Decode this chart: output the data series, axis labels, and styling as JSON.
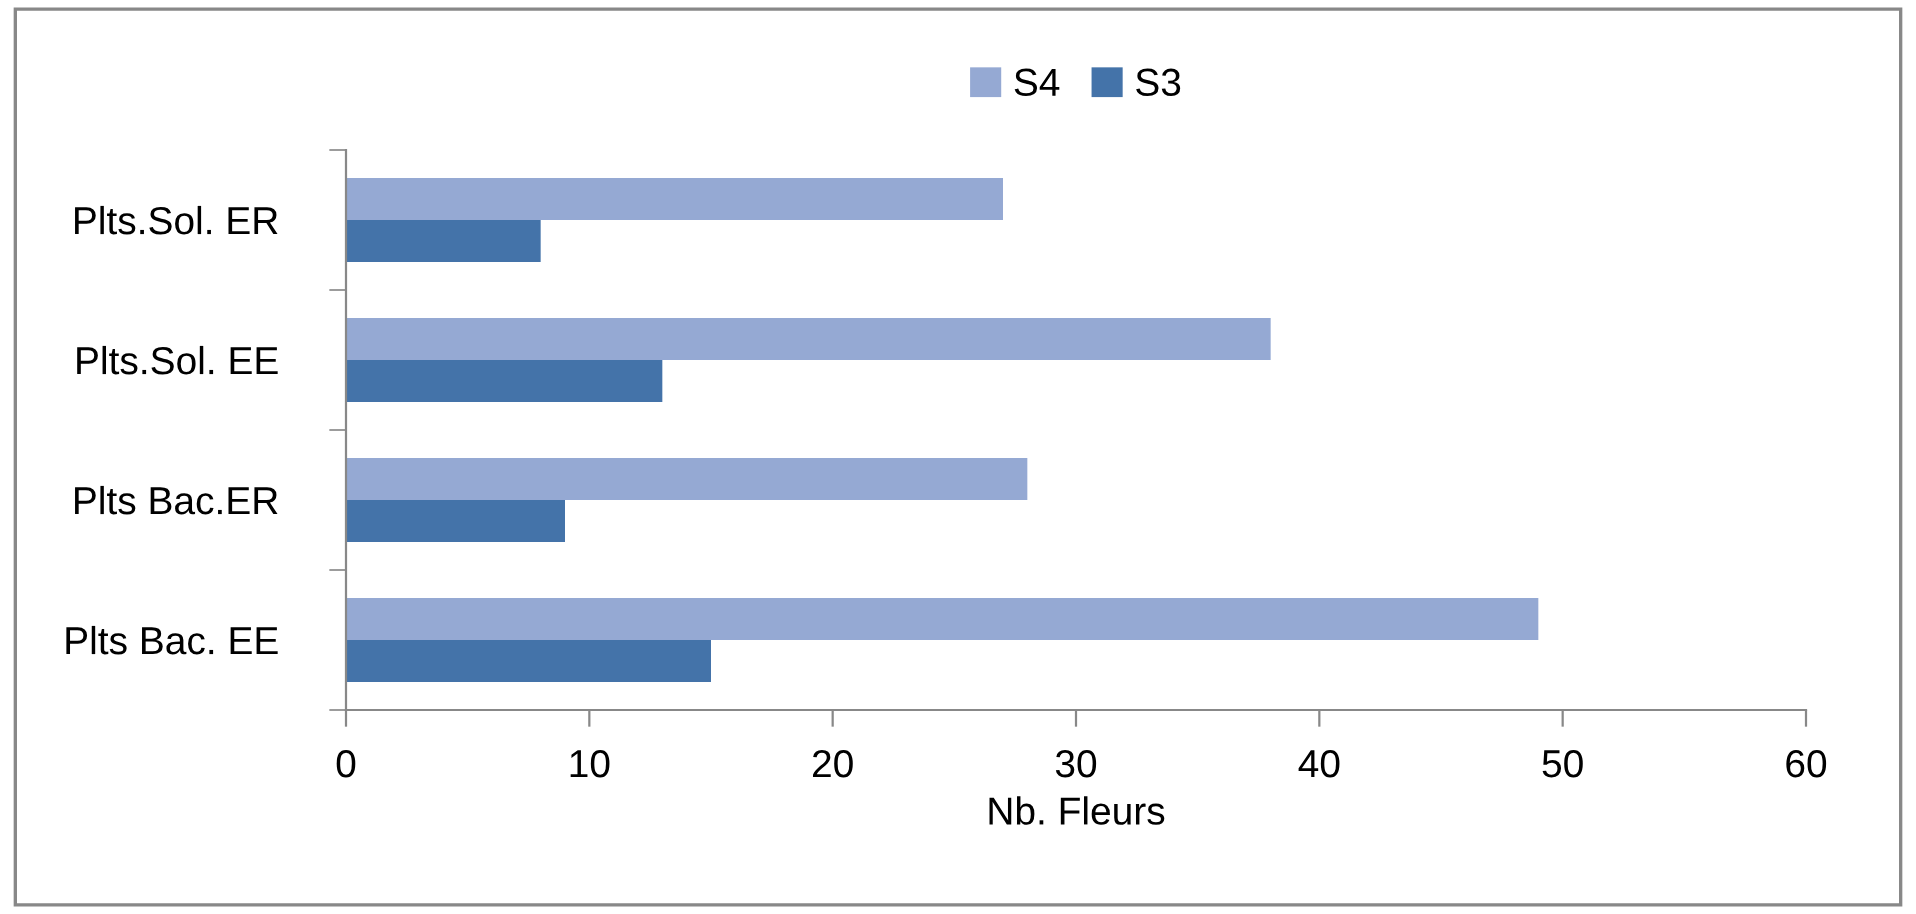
{
  "chart_data": {
    "type": "bar",
    "orientation": "horizontal",
    "xlabel": "Nb. Fleurs",
    "categories": [
      "Plts.Sol. ER",
      "Plts.Sol. EE",
      "Plts Bac.ER",
      "Plts Bac. EE"
    ],
    "series": [
      {
        "name": "S4",
        "color": "#95a9d3",
        "values": [
          27,
          38,
          28,
          49
        ]
      },
      {
        "name": "S3",
        "color": "#4473a9",
        "values": [
          8,
          13,
          9,
          15
        ]
      }
    ],
    "xlim": [
      0,
      60
    ],
    "xticks": [
      0,
      10,
      20,
      30,
      40,
      50,
      60
    ],
    "grid": false,
    "legend": "top"
  }
}
